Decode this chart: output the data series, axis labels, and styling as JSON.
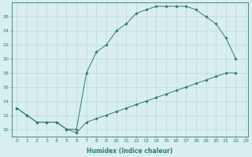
{
  "line1_x": [
    0,
    1,
    2,
    3,
    4,
    5,
    6,
    7,
    8,
    9,
    10,
    11,
    12,
    13,
    14,
    15,
    16,
    17,
    18,
    19,
    20,
    21,
    22
  ],
  "line1_y": [
    13,
    12,
    11,
    11,
    11,
    10,
    10,
    18,
    21,
    22,
    24,
    25,
    26.5,
    27,
    27.5,
    27.5,
    27.5,
    27.5,
    27,
    26,
    25,
    23,
    20
  ],
  "line2_x": [
    0,
    1,
    2,
    3,
    4,
    5,
    6,
    7,
    8,
    9,
    10,
    11,
    12,
    13,
    14,
    15,
    16,
    17,
    18,
    19,
    20,
    21,
    22
  ],
  "line2_y": [
    13,
    12,
    11,
    11,
    11,
    10,
    9.5,
    11,
    11.5,
    12,
    12.5,
    13,
    13.5,
    14,
    14.5,
    15,
    15.5,
    16,
    16.5,
    17,
    17.5,
    18,
    18
  ],
  "line_color": "#2e7d6e",
  "bg_color": "#d8eef0",
  "grid_color": "#b8d4d8",
  "xlabel": "Humidex (Indice chaleur)",
  "xlim": [
    -0.5,
    23.2
  ],
  "ylim": [
    9,
    28
  ],
  "yticks": [
    10,
    12,
    14,
    16,
    18,
    20,
    22,
    24,
    26
  ],
  "xticks": [
    0,
    1,
    2,
    3,
    4,
    5,
    6,
    7,
    8,
    9,
    10,
    11,
    12,
    13,
    14,
    15,
    16,
    17,
    18,
    19,
    20,
    21,
    22,
    23
  ],
  "xtick_labels": [
    "0",
    "1",
    "2",
    "3",
    "4",
    "5",
    "6",
    "7",
    "8",
    "9",
    "10",
    "11",
    "12",
    "13",
    "14",
    "15",
    "16",
    "17",
    "18",
    "19",
    "20",
    "21",
    "22",
    "23"
  ],
  "axis_fontsize": 5.5,
  "tick_fontsize": 4.5,
  "marker": "D",
  "marker_size": 1.8,
  "line_width": 0.7
}
